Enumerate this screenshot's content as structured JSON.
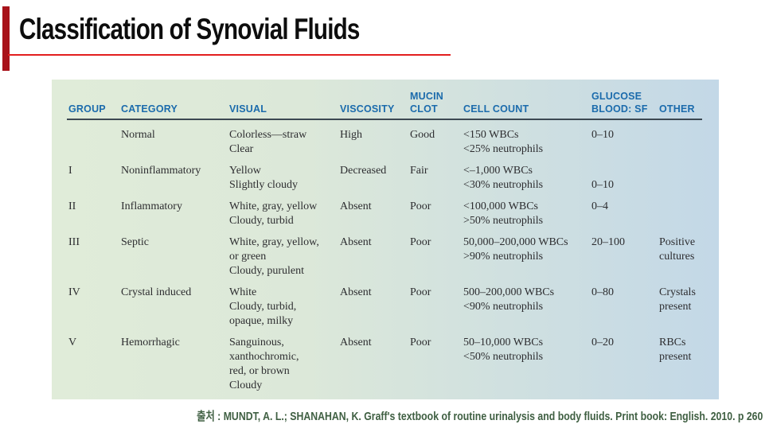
{
  "slide": {
    "title": "Classification of Synovial Fluids",
    "citation": "출처 : MUNDT, A. L.; SHANAHAN, K. Graff's textbook of routine urinalysis and body fluids. Print book: English. 2010. p 260"
  },
  "colors": {
    "accent_bar": "#a8121a",
    "accent_line": "#e21e1e",
    "header_text": "#1b6bac",
    "header_rule": "#3c4852",
    "body_text": "#2d2d30",
    "citation_text": "#3f5f42",
    "table_bg_left": "#e0ecd9",
    "table_bg_right": "#c3d8e7"
  },
  "table": {
    "column_names": [
      "group",
      "category",
      "visual",
      "viscosity",
      "mucin-clot",
      "cell-count",
      "glucose-blood-sf",
      "other"
    ],
    "columns": [
      [
        "GROUP"
      ],
      [
        "CATEGORY"
      ],
      [
        "VISUAL"
      ],
      [
        "VISCOSITY"
      ],
      [
        "MUCIN",
        "CLOT"
      ],
      [
        "CELL COUNT"
      ],
      [
        "GLUCOSE",
        "BLOOD: SF"
      ],
      [
        "OTHER"
      ]
    ],
    "rows": [
      {
        "cells": [
          [
            ""
          ],
          [
            "Normal"
          ],
          [
            "Colorless—straw",
            "Clear"
          ],
          [
            "High"
          ],
          [
            "Good"
          ],
          [
            "<150 WBCs",
            "<25% neutrophils"
          ],
          [
            "0–10"
          ],
          []
        ]
      },
      {
        "cells": [
          [
            "I"
          ],
          [
            "Noninflammatory"
          ],
          [
            "Yellow",
            "Slightly cloudy"
          ],
          [
            "Decreased"
          ],
          [
            "Fair"
          ],
          [
            "<–1,000 WBCs",
            "<30% neutrophils"
          ],
          [
            "",
            "0–10"
          ],
          []
        ]
      },
      {
        "cells": [
          [
            "II"
          ],
          [
            "Inflammatory"
          ],
          [
            "White, gray, yellow",
            "Cloudy, turbid"
          ],
          [
            "Absent"
          ],
          [
            "Poor"
          ],
          [
            "<100,000 WBCs",
            ">50% neutrophils"
          ],
          [
            "0–4"
          ],
          []
        ]
      },
      {
        "cells": [
          [
            "III"
          ],
          [
            "Septic"
          ],
          [
            "White, gray, yellow,",
            "or green",
            "Cloudy, purulent"
          ],
          [
            "Absent"
          ],
          [
            "Poor"
          ],
          [
            "50,000–200,000 WBCs",
            ">90% neutrophils"
          ],
          [
            "20–100"
          ],
          [
            "Positive",
            "cultures"
          ]
        ]
      },
      {
        "cells": [
          [
            "IV"
          ],
          [
            "Crystal induced"
          ],
          [
            "White",
            "Cloudy, turbid,",
            "opaque, milky"
          ],
          [
            "Absent"
          ],
          [
            "Poor"
          ],
          [
            "500–200,000 WBCs",
            "<90% neutrophils"
          ],
          [
            "0–80"
          ],
          [
            "Crystals",
            "present"
          ]
        ]
      },
      {
        "cells": [
          [
            "V"
          ],
          [
            "Hemorrhagic"
          ],
          [
            "Sanguinous,",
            "xanthochromic,",
            "red, or brown",
            "Cloudy"
          ],
          [
            "Absent"
          ],
          [
            "Poor"
          ],
          [
            "50–10,000 WBCs",
            "<50% neutrophils"
          ],
          [
            "0–20"
          ],
          [
            "RBCs",
            "present"
          ]
        ]
      }
    ]
  }
}
